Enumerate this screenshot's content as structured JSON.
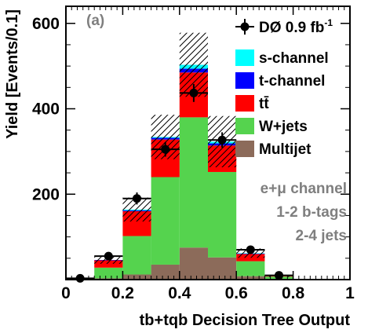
{
  "chart_data": {
    "type": "bar",
    "subtype": "stacked-histogram",
    "panel_label": "(a)",
    "xlabel": "tb+tqb Decision Tree Output",
    "ylabel": "Yield [Events/0.1]",
    "xlim": [
      0,
      1
    ],
    "ylim": [
      0,
      640
    ],
    "x_ticks": [
      "0",
      "0.2",
      "0.4",
      "0.6",
      "0.8",
      "1"
    ],
    "x_tick_values": [
      0,
      0.2,
      0.4,
      0.6,
      0.8,
      1
    ],
    "y_ticks": [
      "200",
      "400",
      "600"
    ],
    "y_tick_values": [
      200,
      400,
      600
    ],
    "grid": false,
    "legend_position": "top-right",
    "bin_edges": [
      0,
      0.1,
      0.2,
      0.3,
      0.4,
      0.5,
      0.6,
      0.7,
      0.8,
      0.9,
      1.0
    ],
    "series": [
      {
        "name": "Multijet",
        "color": "#8c6b5a",
        "values": [
          0,
          3,
          12,
          35,
          75,
          52,
          8,
          2,
          0,
          0
        ]
      },
      {
        "name": "W+jets",
        "color": "#55d34e",
        "values": [
          2,
          25,
          90,
          205,
          305,
          200,
          35,
          5,
          0,
          0
        ]
      },
      {
        "name": "tt̄",
        "color": "#ff0000",
        "values": [
          0,
          17,
          58,
          88,
          105,
          62,
          17,
          1,
          0,
          0
        ]
      },
      {
        "name": "t-channel",
        "color": "#0000ff",
        "values": [
          0,
          1,
          2,
          4,
          9,
          5,
          1,
          0,
          0,
          0
        ]
      },
      {
        "name": "s-channel",
        "color": "#00ffff",
        "values": [
          0,
          0,
          2,
          2,
          9,
          4,
          1,
          0,
          0,
          0
        ]
      }
    ],
    "uncertainty": {
      "style": "hatched",
      "values": [
        2,
        9,
        28,
        52,
        75,
        60,
        11,
        2,
        0,
        0
      ]
    },
    "data": {
      "name": "DØ 0.9 fb",
      "name_superscript": "-1",
      "x": [
        0.05,
        0.15,
        0.25,
        0.35,
        0.45,
        0.55,
        0.65,
        0.75
      ],
      "y": [
        3,
        55,
        190,
        305,
        437,
        327,
        70,
        10
      ],
      "yerr": [
        2,
        7,
        14,
        17,
        21,
        18,
        8,
        3
      ]
    },
    "annotations": [
      "e+μ channel",
      "1-2 b-tags",
      "2-4 jets"
    ]
  }
}
